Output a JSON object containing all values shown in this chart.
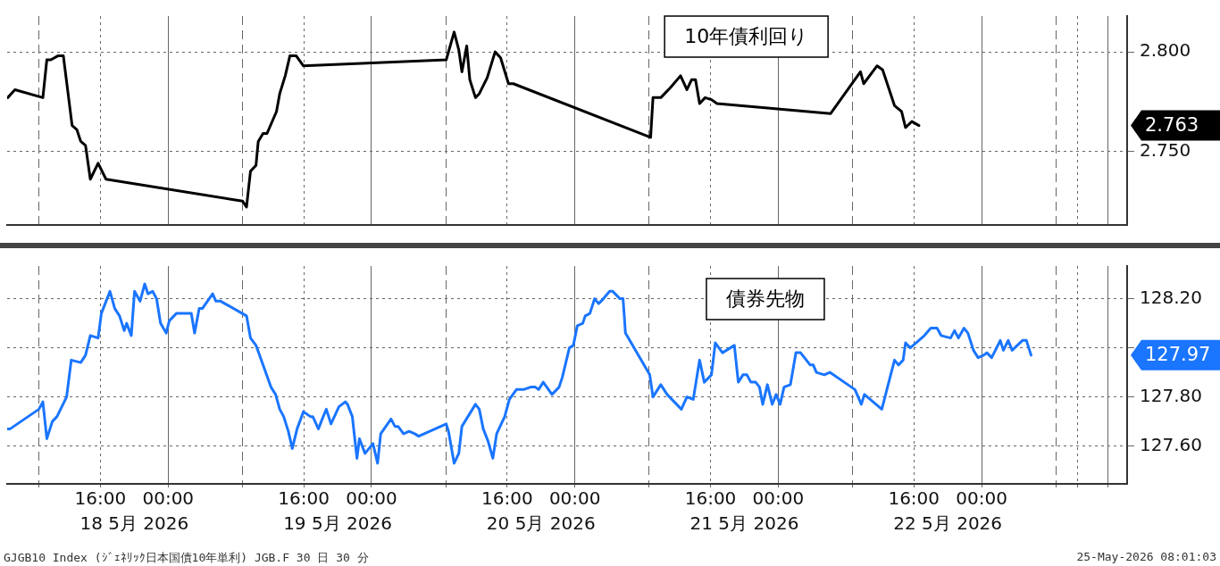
{
  "chart_data": [
    {
      "type": "line",
      "title": "10年債利回り",
      "tick_labels": "y",
      "grid": true,
      "xlim": [
        "2026-05-18T05:00",
        "2026-05-23T17:10"
      ],
      "xticks": [
        {
          "value": "2026-05-18T08:45",
          "label": null
        },
        {
          "value": "2026-05-18T16:00",
          "label": null
        },
        {
          "value": "2026-05-19T00:00",
          "label": null
        },
        {
          "value": "2026-05-19T08:45",
          "label": null
        },
        {
          "value": "2026-05-19T16:00",
          "label": null
        },
        {
          "value": "2026-05-20T00:00",
          "label": null
        },
        {
          "value": "2026-05-20T08:45",
          "label": null
        },
        {
          "value": "2026-05-20T16:00",
          "label": null
        },
        {
          "value": "2026-05-21T00:00",
          "label": null
        },
        {
          "value": "2026-05-21T08:45",
          "label": null
        },
        {
          "value": "2026-05-21T16:00",
          "label": null
        },
        {
          "value": "2026-05-22T00:00",
          "label": null
        },
        {
          "value": "2026-05-22T08:45",
          "label": null
        },
        {
          "value": "2026-05-22T16:00",
          "label": null
        },
        {
          "value": "2026-05-23T00:00",
          "label": null
        },
        {
          "value": "2026-05-23T08:45",
          "label": null
        },
        {
          "value": "2026-05-23T11:20",
          "label": null
        },
        {
          "value": "2026-05-23T14:55",
          "label": null
        }
      ],
      "ylim": [
        2.713,
        2.818
      ],
      "yticks": [
        {
          "value": 2.75,
          "label": "2.750"
        },
        {
          "value": 2.8,
          "label": "2.800"
        }
      ],
      "series": [
        {
          "color": "#000000",
          "x": [
            "2026-05-18T05:04",
            "2026-05-18T05:55",
            "2026-05-18T09:13",
            "2026-05-18T09:41",
            "2026-05-18T10:09",
            "2026-05-18T10:59",
            "2026-05-18T11:38",
            "2026-05-18T12:40",
            "2026-05-18T13:13",
            "2026-05-18T13:41",
            "2026-05-18T14:15",
            "2026-05-18T14:49",
            "2026-05-18T15:44",
            "2026-05-18T16:40",
            "2026-05-19T08:47",
            "2026-05-19T09:15",
            "2026-05-19T09:43",
            "2026-05-19T10:22",
            "2026-05-19T10:38",
            "2026-05-19T11:12",
            "2026-05-19T11:40",
            "2026-05-19T12:47",
            "2026-05-19T13:10",
            "2026-05-19T13:49",
            "2026-05-19T14:22",
            "2026-05-19T15:07",
            "2026-05-19T15:57",
            "2026-05-20T08:49",
            "2026-05-20T09:45",
            "2026-05-20T10:18",
            "2026-05-20T10:40",
            "2026-05-20T11:14",
            "2026-05-20T11:36",
            "2026-05-20T12:16",
            "2026-05-20T12:43",
            "2026-05-20T13:39",
            "2026-05-20T14:35",
            "2026-05-20T15:14",
            "2026-05-20T16:10",
            "2026-05-20T16:44",
            "2026-05-21T08:56",
            "2026-05-21T09:13",
            "2026-05-21T10:08",
            "2026-05-21T11:16",
            "2026-05-21T12:28",
            "2026-05-21T13:13",
            "2026-05-21T13:46",
            "2026-05-21T14:14",
            "2026-05-21T14:43",
            "2026-05-21T15:22",
            "2026-05-21T16:07",
            "2026-05-21T16:46",
            "2026-05-22T06:11",
            "2026-05-22T09:42",
            "2026-05-22T10:05",
            "2026-05-22T11:40",
            "2026-05-22T12:19",
            "2026-05-22T13:43",
            "2026-05-22T14:33",
            "2026-05-22T15:01",
            "2026-05-22T15:46",
            "2026-05-22T16:36"
          ],
          "values": [
            2.777,
            2.781,
            2.777,
            2.796,
            2.796,
            2.798,
            2.798,
            2.763,
            2.761,
            2.755,
            2.753,
            2.736,
            2.744,
            2.736,
            2.725,
            2.722,
            2.74,
            2.743,
            2.755,
            2.759,
            2.759,
            2.77,
            2.779,
            2.788,
            2.798,
            2.798,
            2.793,
            2.796,
            2.81,
            2.801,
            2.79,
            2.803,
            2.786,
            2.777,
            2.779,
            2.787,
            2.8,
            2.797,
            2.784,
            2.784,
            2.757,
            2.777,
            2.777,
            2.782,
            2.788,
            2.781,
            2.786,
            2.786,
            2.774,
            2.777,
            2.776,
            2.774,
            2.769,
            2.79,
            2.784,
            2.793,
            2.791,
            2.773,
            2.77,
            2.762,
            2.765,
            2.763
          ]
        }
      ],
      "annotations": [
        "2.763"
      ]
    },
    {
      "type": "line",
      "title": "債券先物",
      "grid": true,
      "xlim": [
        "2026-05-18T05:00",
        "2026-05-23T17:10"
      ],
      "xticks": [
        {
          "value": "2026-05-18T08:45",
          "label": null
        },
        {
          "value": "2026-05-18T16:00",
          "label": "16:00"
        },
        {
          "value": "2026-05-19T00:00",
          "label": "00:00"
        },
        {
          "value": "2026-05-19T08:45",
          "label": null
        },
        {
          "value": "2026-05-19T16:00",
          "label": "16:00"
        },
        {
          "value": "2026-05-20T00:00",
          "label": "00:00"
        },
        {
          "value": "2026-05-20T08:45",
          "label": null
        },
        {
          "value": "2026-05-20T16:00",
          "label": "16:00"
        },
        {
          "value": "2026-05-21T00:00",
          "label": "00:00"
        },
        {
          "value": "2026-05-21T08:45",
          "label": null
        },
        {
          "value": "2026-05-21T16:00",
          "label": "16:00"
        },
        {
          "value": "2026-05-22T00:00",
          "label": "00:00"
        },
        {
          "value": "2026-05-22T08:45",
          "label": null
        },
        {
          "value": "2026-05-22T16:00",
          "label": "16:00"
        },
        {
          "value": "2026-05-23T00:00",
          "label": "00:00"
        },
        {
          "value": "2026-05-23T08:45",
          "label": null
        },
        {
          "value": "2026-05-23T11:20",
          "label": null
        },
        {
          "value": "2026-05-23T14:55",
          "label": null
        }
      ],
      "x2lim": [
        "2026-05-18T05:00",
        "2026-05-23T17:10"
      ],
      "x2ticks": [
        {
          "value": "2026-05-18T20:00",
          "label": "18 5月 2026"
        },
        {
          "value": "2026-05-19T20:00",
          "label": "19 5月 2026"
        },
        {
          "value": "2026-05-20T20:00",
          "label": "20 5月 2026"
        },
        {
          "value": "2026-05-21T20:00",
          "label": "21 5月 2026"
        },
        {
          "value": "2026-05-22T20:00",
          "label": "22 5月 2026"
        }
      ],
      "ylim": [
        127.446,
        128.333
      ],
      "yticks": [
        {
          "value": 127.6,
          "label": "127.60"
        },
        {
          "value": 127.8,
          "label": "127.80"
        },
        {
          "value": 128.0,
          "label": null
        },
        {
          "value": 128.2,
          "label": "128.20"
        }
      ],
      "series": [
        {
          "color": "#1a75ff",
          "x": [
            "2026-05-18T05:04",
            "2026-05-18T05:21",
            "2026-05-18T08:45",
            "2026-05-18T09:13",
            "2026-05-18T09:41",
            "2026-05-18T10:20",
            "2026-05-18T10:53",
            "2026-05-18T12:01",
            "2026-05-18T12:34",
            "2026-05-18T13:41",
            "2026-05-18T14:15",
            "2026-05-18T14:49",
            "2026-05-18T15:44",
            "2026-05-18T16:07",
            "2026-05-18T17:08",
            "2026-05-18T17:42",
            "2026-05-18T18:16",
            "2026-05-18T18:49",
            "2026-05-18T19:06",
            "2026-05-18T19:39",
            "2026-05-18T20:02",
            "2026-05-18T20:41",
            "2026-05-18T21:14",
            "2026-05-18T21:37",
            "2026-05-18T22:10",
            "2026-05-18T22:38",
            "2026-05-18T23:06",
            "2026-05-18T23:46",
            "2026-05-19T00:08",
            "2026-05-19T00:58",
            "2026-05-19T02:16",
            "2026-05-19T02:44",
            "2026-05-19T03:07",
            "2026-05-19T03:40",
            "2026-05-19T04:02",
            "2026-05-19T05:15",
            "2026-05-19T05:38",
            "2026-05-19T06:11",
            "2026-05-19T09:15",
            "2026-05-19T09:43",
            "2026-05-19T10:22",
            "2026-05-19T12:08",
            "2026-05-19T12:41",
            "2026-05-19T13:10",
            "2026-05-19T13:38",
            "2026-05-19T14:11",
            "2026-05-19T14:39",
            "2026-05-19T15:13",
            "2026-05-19T15:58",
            "2026-05-19T16:47",
            "2026-05-19T17:04",
            "2026-05-19T17:44",
            "2026-05-19T18:11",
            "2026-05-19T18:40",
            "2026-05-19T19:13",
            "2026-05-19T20:09",
            "2026-05-19T20:54",
            "2026-05-19T21:10",
            "2026-05-19T21:44",
            "2026-05-19T22:17",
            "2026-05-19T22:34",
            "2026-05-19T23:14",
            "2026-05-20T00:10",
            "2026-05-20T00:43",
            "2026-05-20T01:05",
            "2026-05-20T02:18",
            "2026-05-20T02:46",
            "2026-05-20T03:08",
            "2026-05-20T03:47",
            "2026-05-20T04:26",
            "2026-05-20T05:06",
            "2026-05-20T05:34",
            "2026-05-20T08:49",
            "2026-05-20T09:05",
            "2026-05-20T09:45",
            "2026-05-20T10:18",
            "2026-05-20T10:40",
            "2026-05-20T12:16",
            "2026-05-20T12:43",
            "2026-05-20T13:11",
            "2026-05-20T13:45",
            "2026-05-20T14:19",
            "2026-05-20T14:46",
            "2026-05-20T15:43",
            "2026-05-20T16:16",
            "2026-05-20T17:06",
            "2026-05-20T17:56",
            "2026-05-20T18:47",
            "2026-05-20T19:20",
            "2026-05-20T19:43",
            "2026-05-20T20:16",
            "2026-05-20T21:18",
            "2026-05-20T22:08",
            "2026-05-20T22:31",
            "2026-05-20T23:21",
            "2026-05-20T23:49",
            "2026-05-21T00:17",
            "2026-05-21T00:56",
            "2026-05-21T01:13",
            "2026-05-21T01:46",
            "2026-05-21T02:20",
            "2026-05-21T02:48",
            "2026-05-21T03:22",
            "2026-05-21T04:06",
            "2026-05-21T04:28",
            "2026-05-21T05:19",
            "2026-05-21T05:41",
            "2026-05-21T05:58",
            "2026-05-21T08:50",
            "2026-05-21T09:13",
            "2026-05-21T10:08",
            "2026-05-21T10:53",
            "2026-05-21T12:34",
            "2026-05-21T13:13",
            "2026-05-21T13:58",
            "2026-05-21T14:43",
            "2026-05-21T15:16",
            "2026-05-21T16:07",
            "2026-05-21T16:34",
            "2026-05-21T17:25",
            "2026-05-21T18:49",
            "2026-05-21T19:17",
            "2026-05-21T19:50",
            "2026-05-21T20:18",
            "2026-05-21T20:46",
            "2026-05-21T21:20",
            "2026-05-21T21:47",
            "2026-05-21T22:10",
            "2026-05-21T22:43",
            "2026-05-21T23:17",
            "2026-05-21T23:45",
            "2026-05-22T00:13",
            "2026-05-22T00:41",
            "2026-05-22T01:26",
            "2026-05-22T02:05",
            "2026-05-22T02:38",
            "2026-05-22T03:46",
            "2026-05-22T04:08",
            "2026-05-22T04:30",
            "2026-05-22T05:26",
            "2026-05-22T06:05",
            "2026-05-22T09:03",
            "2026-05-22T09:48",
            "2026-05-22T10:10",
            "2026-05-22T12:13",
            "2026-05-22T13:43",
            "2026-05-22T14:11",
            "2026-05-22T14:44",
            "2026-05-22T15:01",
            "2026-05-22T15:35",
            "2026-05-22T17:15",
            "2026-05-22T18:00",
            "2026-05-22T18:44",
            "2026-05-22T19:13",
            "2026-05-22T20:20",
            "2026-05-22T20:48",
            "2026-05-22T21:16",
            "2026-05-22T21:55",
            "2026-05-22T22:23",
            "2026-05-22T23:02",
            "2026-05-22T23:35",
            "2026-05-23T00:14",
            "2026-05-23T00:37",
            "2026-05-23T01:11",
            "2026-05-23T02:12",
            "2026-05-23T02:34",
            "2026-05-23T03:08",
            "2026-05-23T03:36",
            "2026-05-23T04:49",
            "2026-05-23T05:17",
            "2026-05-23T05:50"
          ],
          "values": [
            127.67,
            127.67,
            127.75,
            127.78,
            127.63,
            127.7,
            127.72,
            127.8,
            127.95,
            127.94,
            127.97,
            128.05,
            128.04,
            128.14,
            128.23,
            128.16,
            128.13,
            128.07,
            128.1,
            128.05,
            128.23,
            128.19,
            128.26,
            128.22,
            128.23,
            128.2,
            128.1,
            128.06,
            128.11,
            128.14,
            128.14,
            128.14,
            128.06,
            128.16,
            128.16,
            128.22,
            128.19,
            128.19,
            128.13,
            128.04,
            128.01,
            127.84,
            127.81,
            127.75,
            127.72,
            127.66,
            127.59,
            127.67,
            127.74,
            127.72,
            127.72,
            127.67,
            127.71,
            127.75,
            127.69,
            127.76,
            127.78,
            127.77,
            127.72,
            127.55,
            127.63,
            127.57,
            127.61,
            127.53,
            127.65,
            127.71,
            127.68,
            127.68,
            127.65,
            127.66,
            127.65,
            127.64,
            127.69,
            127.66,
            127.53,
            127.57,
            127.68,
            127.77,
            127.75,
            127.67,
            127.62,
            127.55,
            127.65,
            127.72,
            127.79,
            127.83,
            127.83,
            127.84,
            127.84,
            127.83,
            127.86,
            127.81,
            127.84,
            127.88,
            128.0,
            128.01,
            128.09,
            128.1,
            128.13,
            128.14,
            128.2,
            128.18,
            128.2,
            128.23,
            128.23,
            128.2,
            128.2,
            128.06,
            127.89,
            127.8,
            127.85,
            127.81,
            127.75,
            127.8,
            127.79,
            127.95,
            127.86,
            127.89,
            128.02,
            127.98,
            128.01,
            127.86,
            127.89,
            127.89,
            127.86,
            127.86,
            127.84,
            127.77,
            127.85,
            127.77,
            127.81,
            127.77,
            127.84,
            127.85,
            127.98,
            127.98,
            127.93,
            127.93,
            127.9,
            127.89,
            127.9,
            127.83,
            127.77,
            127.81,
            127.75,
            127.95,
            127.93,
            127.95,
            128.02,
            128.0,
            128.05,
            128.08,
            128.08,
            128.05,
            128.04,
            128.07,
            128.04,
            128.08,
            128.06,
            127.99,
            127.96,
            127.97,
            127.98,
            127.96,
            128.03,
            127.99,
            128.03,
            127.99,
            128.03,
            128.03,
            127.97
          ]
        }
      ],
      "annotations": [
        "127.97",
        "GJGB10 Index (ｼﾞｪﾈﾘｯｸ日本国債10年単利) JGB.F 30 日 30 分",
        "25-May-2026 08:01:03"
      ]
    }
  ]
}
